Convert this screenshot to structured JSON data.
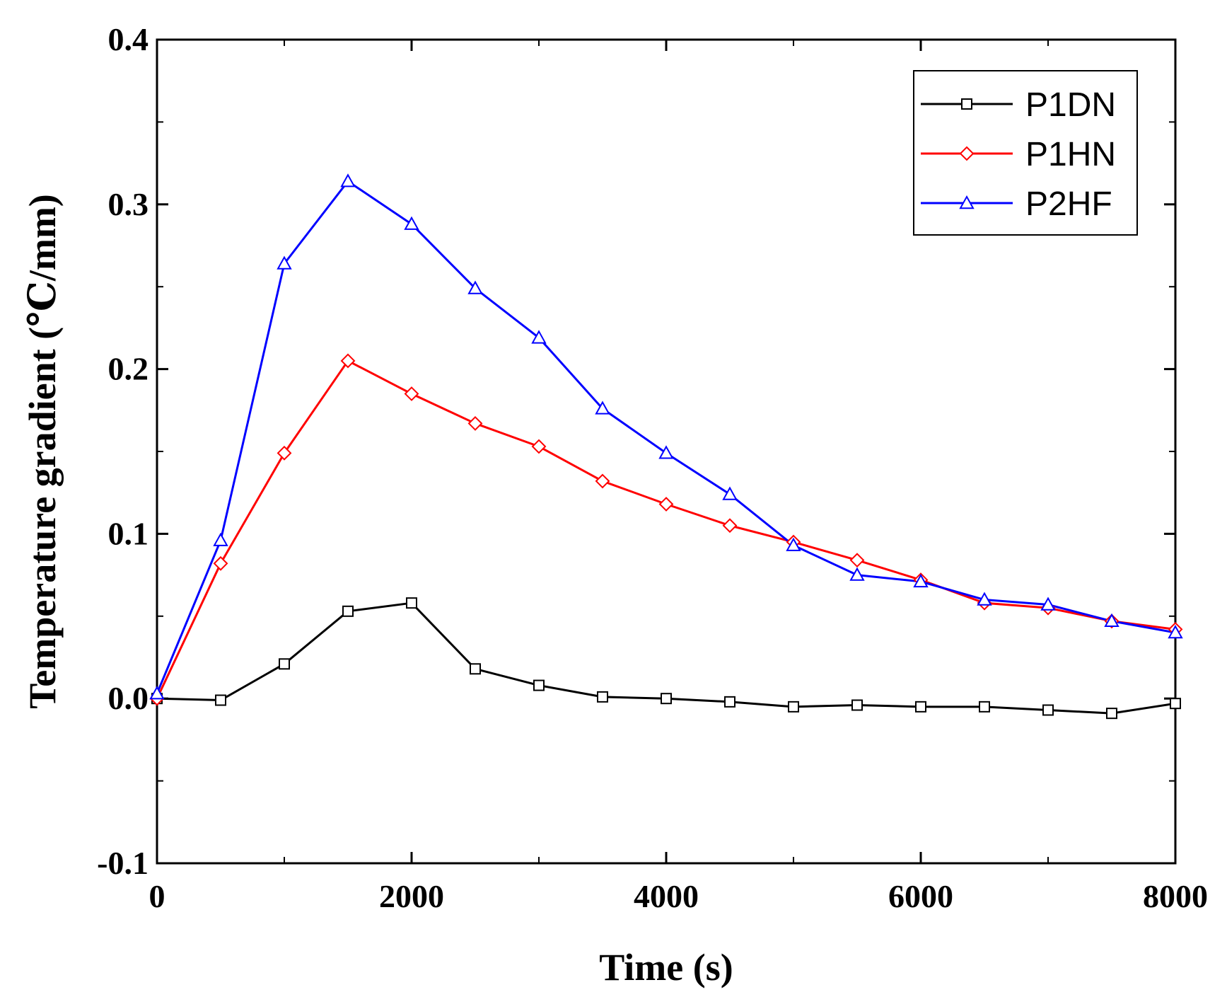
{
  "chart_data": {
    "type": "line",
    "title": "",
    "xlabel": "Time (s)",
    "ylabel": "Temperature gradient (℃/mm)",
    "xlim": [
      0,
      8000
    ],
    "ylim": [
      -0.1,
      0.4
    ],
    "xticks": [
      0,
      2000,
      4000,
      6000,
      8000
    ],
    "xtick_labels": [
      "0",
      "2000",
      "4000",
      "6000",
      "8000"
    ],
    "yticks": [
      -0.1,
      0.0,
      0.1,
      0.2,
      0.3,
      0.4
    ],
    "ytick_labels": [
      "-0.1",
      "0.0",
      "0.1",
      "0.2",
      "0.3",
      "0.4"
    ],
    "grid": false,
    "legend_position": "top-right",
    "x": [
      0,
      500,
      1000,
      1500,
      2000,
      2500,
      3000,
      3500,
      4000,
      4500,
      5000,
      5500,
      6000,
      6500,
      7000,
      7500,
      8000
    ],
    "series": [
      {
        "name": "P1DN",
        "color": "#000000",
        "marker": "square",
        "values": [
          0.0,
          -0.001,
          0.021,
          0.053,
          0.058,
          0.018,
          0.008,
          0.001,
          0.0,
          -0.002,
          -0.005,
          -0.004,
          -0.005,
          -0.005,
          -0.007,
          -0.009,
          -0.003
        ]
      },
      {
        "name": "P1HN",
        "color": "#ff0000",
        "marker": "diamond",
        "values": [
          0.0,
          0.082,
          0.149,
          0.205,
          0.185,
          0.167,
          0.153,
          0.132,
          0.118,
          0.105,
          0.095,
          0.084,
          0.072,
          0.058,
          0.055,
          0.047,
          0.042
        ]
      },
      {
        "name": "P2HF",
        "color": "#0000ff",
        "marker": "triangle",
        "values": [
          0.003,
          0.096,
          0.264,
          0.314,
          0.288,
          0.249,
          0.219,
          0.176,
          0.149,
          0.124,
          0.093,
          0.075,
          0.071,
          0.06,
          0.057,
          0.047,
          0.04
        ]
      }
    ]
  }
}
